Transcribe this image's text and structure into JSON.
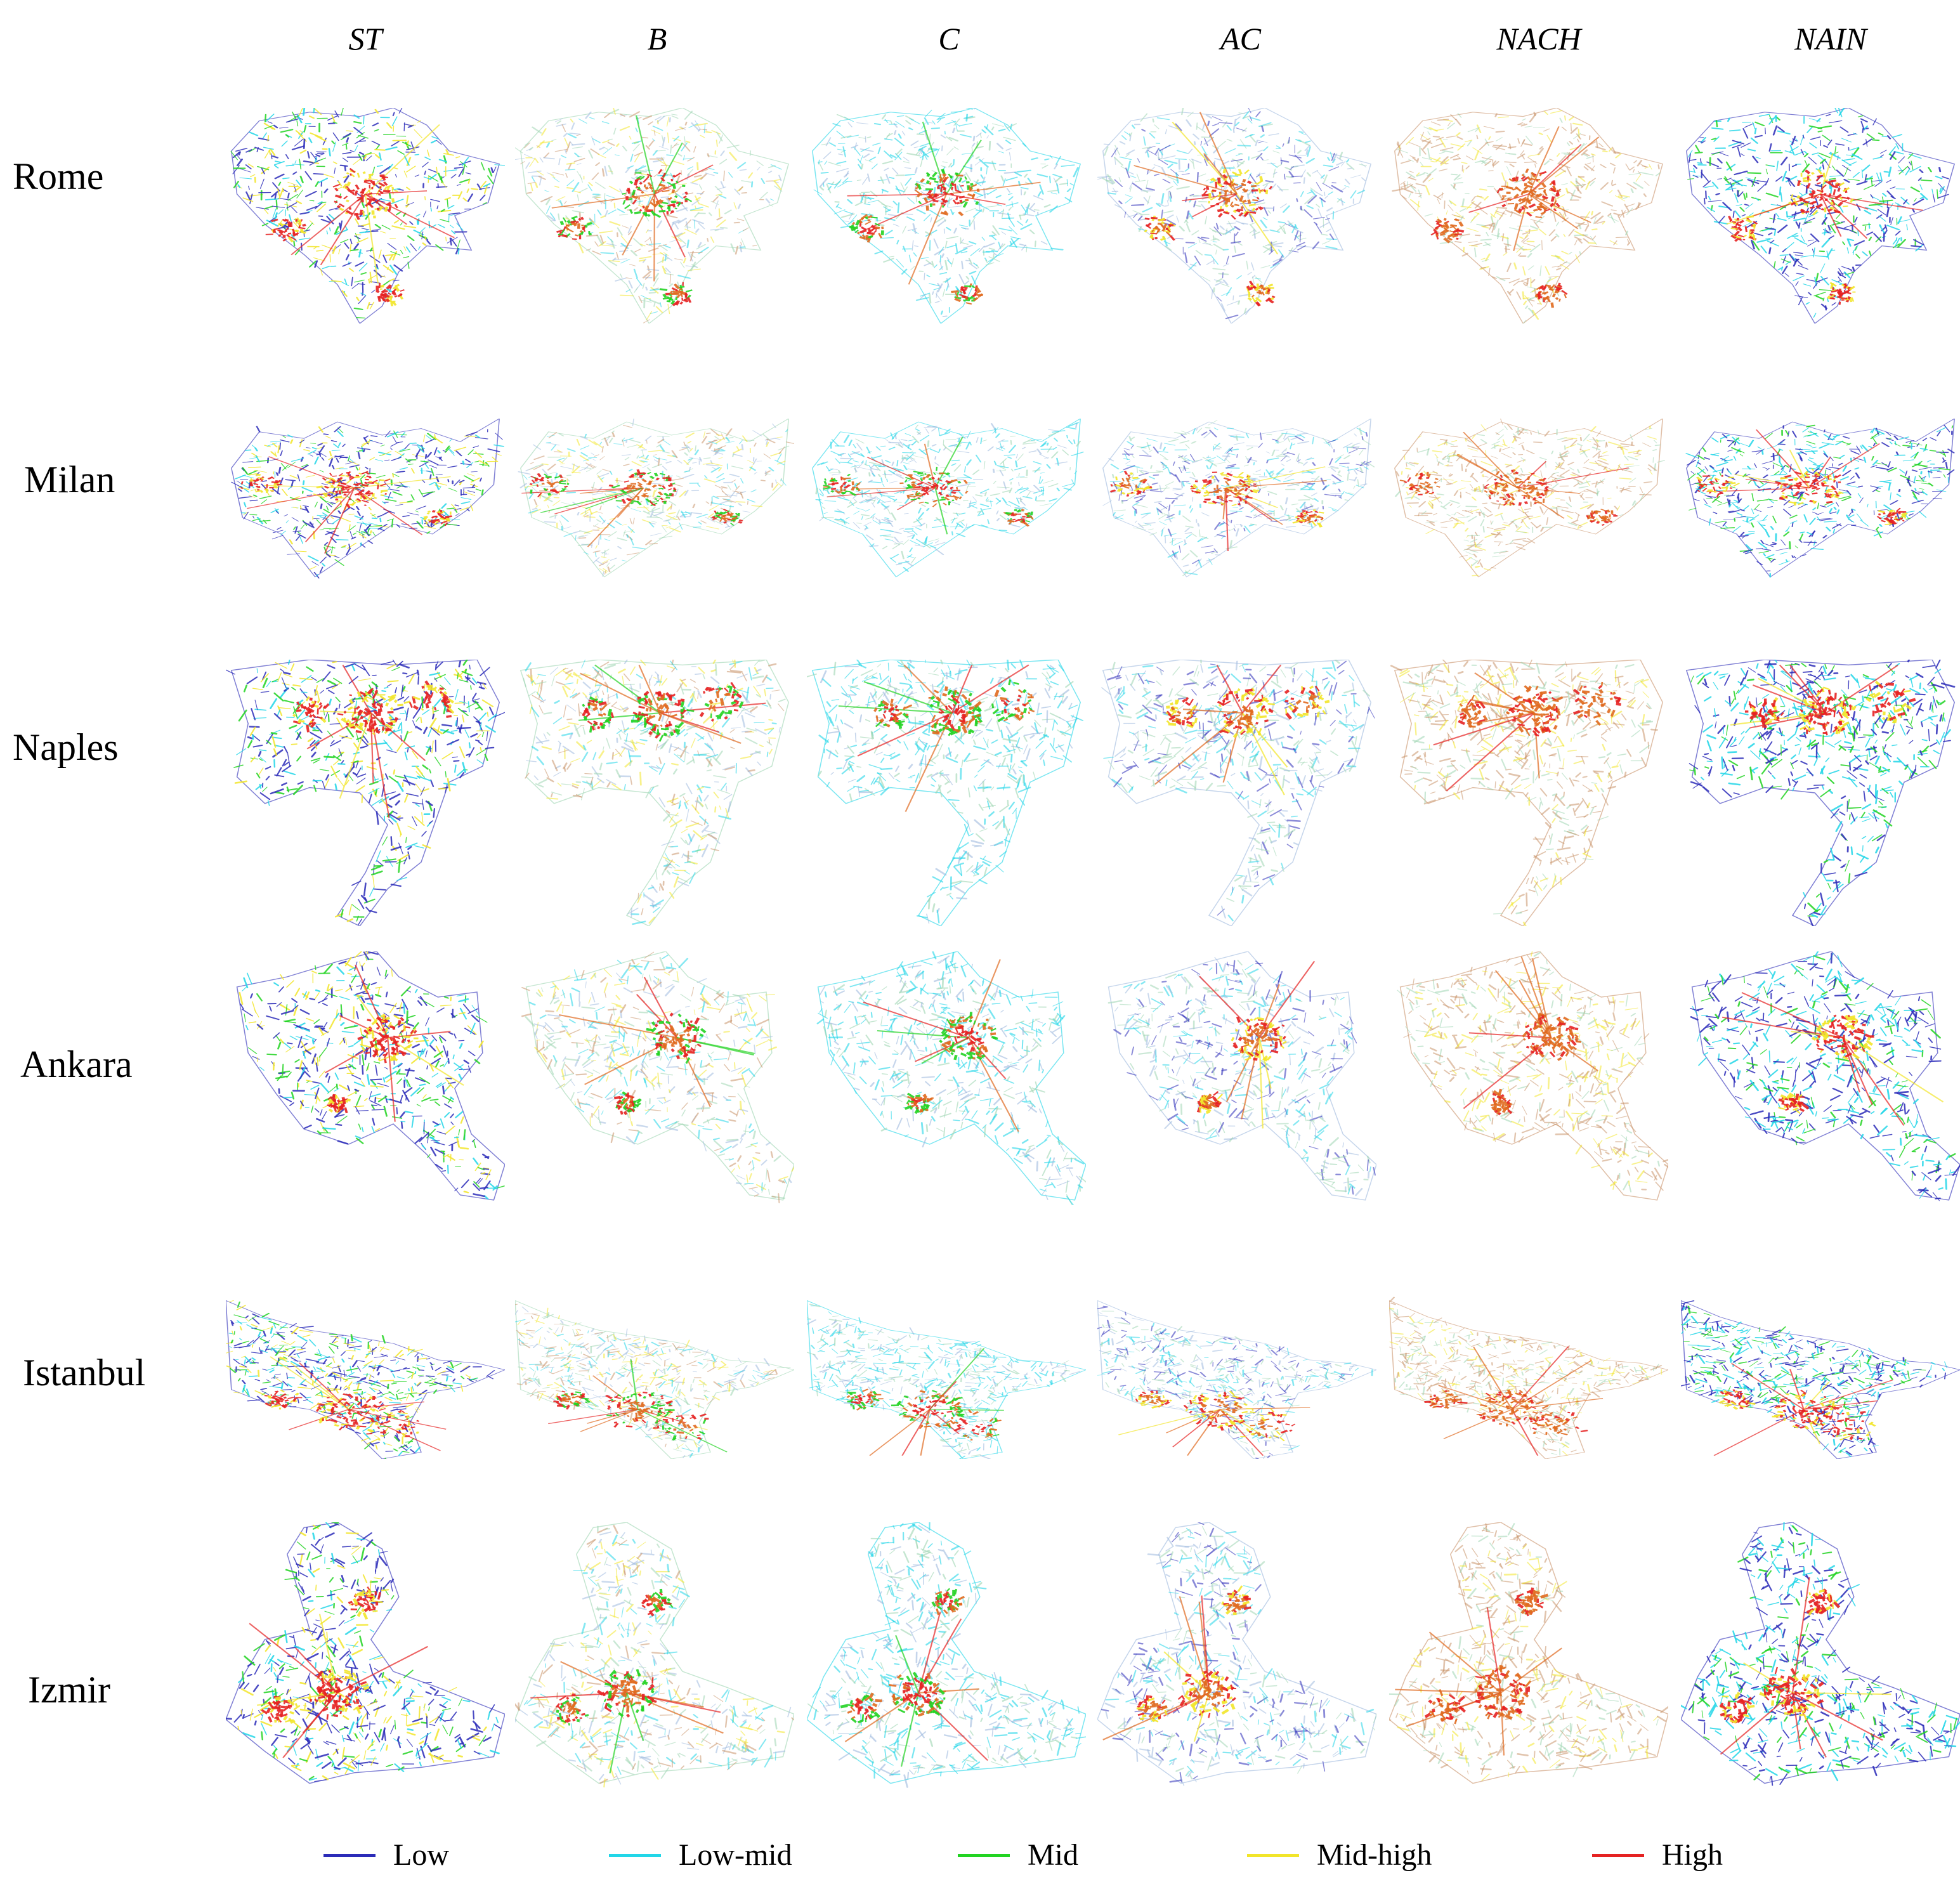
{
  "metrics": [
    "ST",
    "B",
    "C",
    "AC",
    "NACH",
    "NAIN"
  ],
  "cities": [
    "Rome",
    "Milan",
    "Naples",
    "Ankara",
    "Istanbul",
    "Izmir"
  ],
  "legend": [
    {
      "label": "Low",
      "color": "#2b2bb8"
    },
    {
      "label": "Low-mid",
      "color": "#22d6e8"
    },
    {
      "label": "Mid",
      "color": "#22d322"
    },
    {
      "label": "Mid-high",
      "color": "#f2e52a"
    },
    {
      "label": "High",
      "color": "#e52222"
    }
  ],
  "palette": {
    "low": "#2b2bb8",
    "low_mid": "#22d6e8",
    "mid": "#22d322",
    "mid_high": "#f2e52a",
    "high": "#e52222",
    "orange": "#e06a1f",
    "brown": "#c9936a",
    "pale_blue": "#9fb9de",
    "pale_green": "#9fd6b3"
  }
}
